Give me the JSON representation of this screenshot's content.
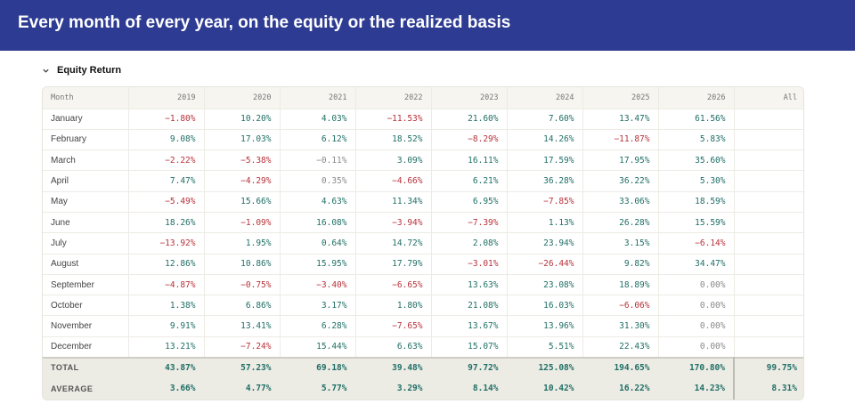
{
  "header": {
    "title": "Every month of every year, on the equity or the realized basis"
  },
  "section": {
    "label": "Equity Return"
  },
  "table": {
    "columns": [
      "Month",
      "2019",
      "2020",
      "2021",
      "2022",
      "2023",
      "2024",
      "2025",
      "2026",
      "All"
    ],
    "rows": [
      {
        "month": "January",
        "values": [
          "−1.80%",
          "10.20%",
          "4.03%",
          "−11.53%",
          "21.60%",
          "7.60%",
          "13.47%",
          "61.56%"
        ]
      },
      {
        "month": "February",
        "values": [
          "9.08%",
          "17.03%",
          "6.12%",
          "18.52%",
          "−8.29%",
          "14.26%",
          "−11.87%",
          "5.83%"
        ]
      },
      {
        "month": "March",
        "values": [
          "−2.22%",
          "−5.38%",
          "−0.11%",
          "3.09%",
          "16.11%",
          "17.59%",
          "17.95%",
          "35.60%"
        ]
      },
      {
        "month": "April",
        "values": [
          "7.47%",
          "−4.29%",
          "0.35%",
          "−4.66%",
          "6.21%",
          "36.28%",
          "36.22%",
          "5.30%"
        ]
      },
      {
        "month": "May",
        "values": [
          "−5.49%",
          "15.66%",
          "4.63%",
          "11.34%",
          "6.95%",
          "−7.85%",
          "33.06%",
          "18.59%"
        ]
      },
      {
        "month": "June",
        "values": [
          "18.26%",
          "−1.09%",
          "16.08%",
          "−3.94%",
          "−7.39%",
          "1.13%",
          "26.28%",
          "15.59%"
        ]
      },
      {
        "month": "July",
        "values": [
          "−13.92%",
          "1.95%",
          "0.64%",
          "14.72%",
          "2.08%",
          "23.94%",
          "3.15%",
          "−6.14%"
        ]
      },
      {
        "month": "August",
        "values": [
          "12.86%",
          "10.86%",
          "15.95%",
          "17.79%",
          "−3.01%",
          "−26.44%",
          "9.82%",
          "34.47%"
        ]
      },
      {
        "month": "September",
        "values": [
          "−4.87%",
          "−0.75%",
          "−3.40%",
          "−6.65%",
          "13.63%",
          "23.08%",
          "18.89%",
          "0.00%"
        ]
      },
      {
        "month": "October",
        "values": [
          "1.38%",
          "6.86%",
          "3.17%",
          "1.80%",
          "21.08%",
          "16.03%",
          "−6.06%",
          "0.00%"
        ]
      },
      {
        "month": "November",
        "values": [
          "9.91%",
          "13.41%",
          "6.28%",
          "−7.65%",
          "13.67%",
          "13.96%",
          "31.30%",
          "0.00%"
        ]
      },
      {
        "month": "December",
        "values": [
          "13.21%",
          "−7.24%",
          "15.44%",
          "6.63%",
          "15.07%",
          "5.51%",
          "22.43%",
          "0.00%"
        ]
      }
    ],
    "summary": [
      {
        "label": "TOTAL",
        "values": [
          "43.87%",
          "57.23%",
          "69.18%",
          "39.48%",
          "97.72%",
          "125.08%",
          "194.65%",
          "170.80%",
          "99.75%"
        ]
      },
      {
        "label": "AVERAGE",
        "values": [
          "3.66%",
          "4.77%",
          "5.77%",
          "3.29%",
          "8.14%",
          "10.42%",
          "16.22%",
          "14.23%",
          "8.31%"
        ]
      }
    ]
  }
}
